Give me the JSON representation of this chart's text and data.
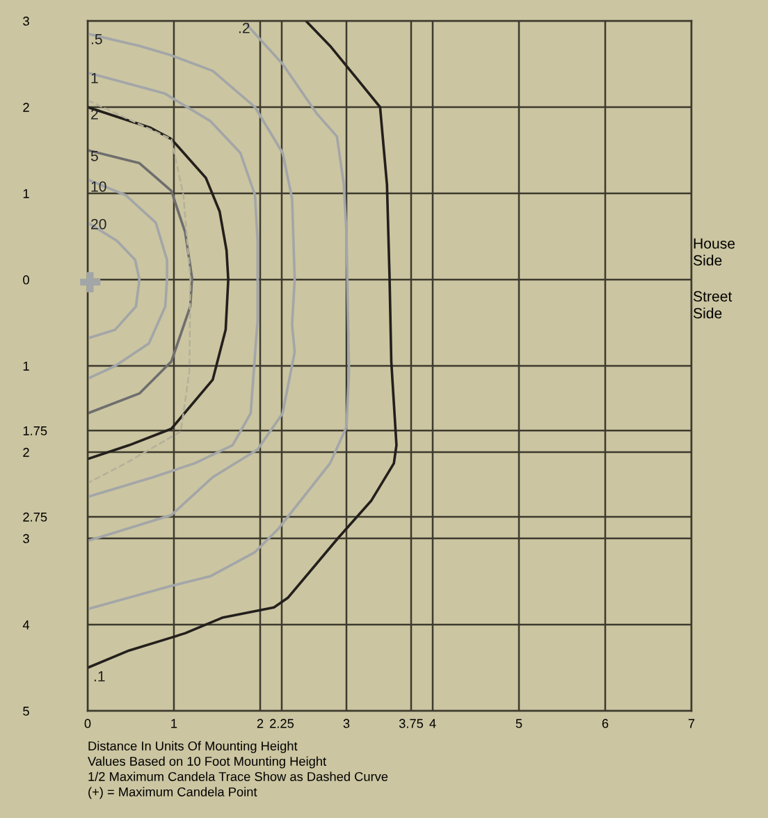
{
  "chart_data": {
    "type": "line",
    "xlabel": "Distance In Units Of Mounting Height",
    "xlim": [
      0,
      7
    ],
    "ylim": [
      -5,
      3
    ],
    "xticks": [
      0,
      1,
      2,
      2.25,
      3,
      3.75,
      4,
      5,
      6,
      7
    ],
    "yticks": [
      3,
      2,
      1,
      0,
      {
        "value": -1,
        "label": "1"
      },
      {
        "value": -1.75,
        "label": "1.75"
      },
      {
        "value": -2,
        "label": "2"
      },
      {
        "value": -2.75,
        "label": "2.75"
      },
      {
        "value": -3,
        "label": "3"
      },
      {
        "value": -4,
        "label": "4"
      },
      {
        "value": -5,
        "label": "5"
      }
    ],
    "grid": true,
    "series": [
      {
        "color": "#a3a6a8",
        "x": [
          0,
          0.34,
          0.55,
          0.6,
          0.56,
          0.32,
          0
        ],
        "values": [
          0.66,
          0.45,
          0.23,
          0,
          -0.31,
          -0.58,
          -0.68
        ]
      },
      {
        "color": "#a3a6a8",
        "x": [
          0,
          0.44,
          0.79,
          0.92,
          0.92,
          0.9,
          0.71,
          0.32,
          0
        ],
        "values": [
          1.16,
          0.98,
          0.66,
          0.23,
          0,
          -0.31,
          -0.74,
          -1.0,
          -1.15
        ]
      },
      {
        "color": "#6e6e6e",
        "x": [
          0,
          0.6,
          0.97,
          1.13,
          1.21,
          1.19,
          0.97,
          0.6,
          0
        ],
        "values": [
          1.5,
          1.35,
          1.03,
          0.55,
          0.02,
          -0.31,
          -0.95,
          -1.32,
          -1.55
        ]
      },
      {
        "color": "#231f1c",
        "x": [
          0,
          0.73,
          0.97,
          1.37,
          1.53,
          1.61,
          1.63,
          1.6,
          1.45,
          0.97,
          0.48,
          0
        ],
        "values": [
          2.0,
          1.76,
          1.63,
          1.18,
          0.79,
          0.34,
          0,
          -0.58,
          -1.16,
          -1.73,
          -1.92,
          -2.08
        ]
      },
      {
        "color": "#a3a6a8",
        "x": [
          0,
          0.89,
          1.42,
          1.77,
          1.94,
          1.97,
          1.97,
          1.97,
          1.89,
          1.68,
          1.24,
          0.76,
          0
        ],
        "values": [
          2.4,
          2.16,
          1.84,
          1.47,
          0.98,
          0.45,
          0,
          -0.47,
          -1.55,
          -1.92,
          -2.13,
          -2.29,
          -2.52
        ]
      },
      {
        "color": "#a3a6a8",
        "x": [
          0,
          0.6,
          0.97,
          1.45,
          1.94,
          2.26,
          2.37,
          2.4,
          2.37,
          2.4,
          2.26,
          1.97,
          1.45,
          0.97,
          0
        ],
        "values": [
          2.85,
          2.71,
          2.6,
          2.42,
          2.0,
          1.47,
          0.94,
          0,
          -0.52,
          -0.84,
          -1.55,
          -1.97,
          -2.29,
          -2.73,
          -3.03
        ]
      },
      {
        "color": "#a3a6a8",
        "x": [
          1.85,
          2.26,
          2.66,
          2.89,
          2.97,
          3.0,
          3.03,
          3.0,
          2.81,
          2.21,
          1.94,
          1.42,
          0.97,
          0
        ],
        "values": [
          2.95,
          2.5,
          1.92,
          1.66,
          1.1,
          0.55,
          -1.06,
          -1.71,
          -2.13,
          -2.89,
          -3.16,
          -3.44,
          -3.55,
          -3.82
        ]
      },
      {
        "color": "#231f1c",
        "x": [
          2.53,
          2.81,
          3.13,
          3.39,
          3.47,
          3.5,
          3.52,
          3.58,
          3.55,
          3.29,
          2.9,
          2.32,
          2.16,
          1.56,
          1.13,
          0.97,
          0.48,
          0
        ],
        "values": [
          3.0,
          2.71,
          2.32,
          2.0,
          1.1,
          0.02,
          -0.95,
          -1.92,
          -2.13,
          -2.56,
          -3.0,
          -3.69,
          -3.8,
          -3.92,
          -4.1,
          -4.15,
          -4.3,
          -4.5
        ]
      },
      {
        "color": "#b4b09a",
        "line_style": "dashed",
        "x": [
          0,
          0.97,
          1.11,
          1.19,
          1.18,
          1.08,
          0.44,
          0
        ],
        "values": [
          2.08,
          1.63,
          0.98,
          0.02,
          -1.06,
          -1.76,
          -2.13,
          -2.36
        ]
      },
      {
        "type": "scatter",
        "marker": "cross",
        "color": "#a3a6a8",
        "x": [
          0.03
        ],
        "values": [
          -0.03
        ]
      }
    ],
    "annotations": [
      ".5",
      "1",
      "2",
      "5",
      "10",
      "20",
      ".2",
      ".1",
      "House Side",
      "Street Side",
      "Values Based on 10 Foot Mounting Height",
      "1/2 Maximum Candela Trace Show as Dashed Curve",
      "(+) = Maximum Candela Point"
    ]
  }
}
